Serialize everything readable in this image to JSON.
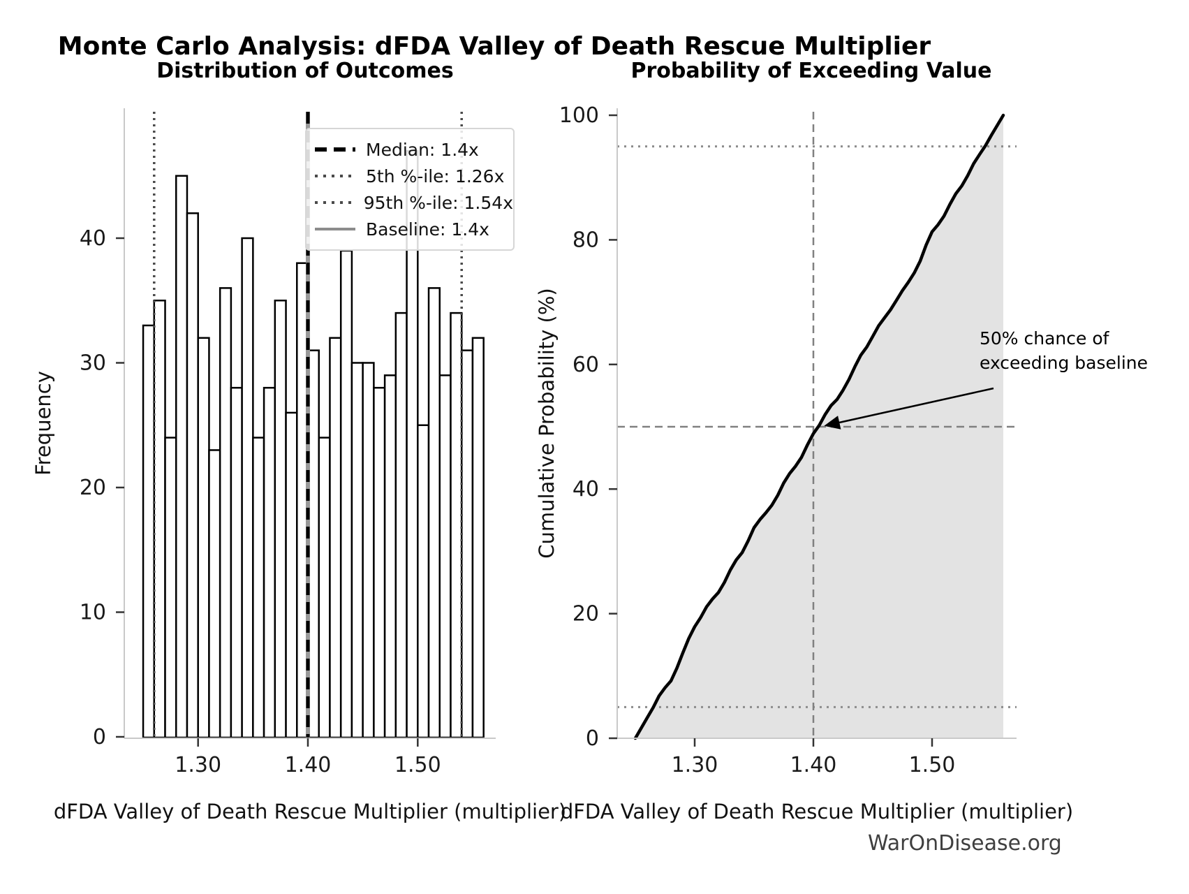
{
  "figure": {
    "title": "Monte Carlo Analysis: dFDA Valley of Death Rescue Multiplier",
    "footer": "WarOnDisease.org",
    "background": "#ffffff"
  },
  "colors": {
    "bar_fill": "#ffffff",
    "bar_edge": "#000000",
    "median_line": "#000000",
    "percentile_line": "#4a4a4a",
    "baseline_line": "#999999",
    "spine": "#c9c9c9",
    "tick_mark": "#333333",
    "tick_label": "#1a1a1a",
    "cdf_curve": "#000000",
    "cdf_fill": "rgba(128,128,128,0.22)",
    "crosshair": "#808080",
    "dotted_level": "#8c8c8c",
    "legend_border": "#d6d6d6",
    "footer_text": "#3f3f3f"
  },
  "chart_data": [
    {
      "id": "histogram",
      "type": "bar",
      "title": "Distribution of Outcomes",
      "xlabel": "dFDA Valley of Death Rescue Multiplier (multiplier)",
      "ylabel": "Frequency",
      "bin_start": 1.25,
      "bin_width": 0.01,
      "frequencies": [
        33,
        35,
        24,
        45,
        42,
        32,
        23,
        36,
        28,
        40,
        24,
        28,
        35,
        26,
        38,
        31,
        24,
        32,
        39,
        30,
        30,
        28,
        29,
        34,
        47,
        25,
        36,
        29,
        34,
        31,
        32
      ],
      "total_samples": 1000,
      "x_ticks": [
        {
          "v": 1.3,
          "label": "1.30"
        },
        {
          "v": 1.4,
          "label": "1.40"
        },
        {
          "v": 1.5,
          "label": "1.50"
        }
      ],
      "y_ticks": [
        {
          "v": 0,
          "label": "0"
        },
        {
          "v": 10,
          "label": "10"
        },
        {
          "v": 20,
          "label": "20"
        },
        {
          "v": 30,
          "label": "30"
        },
        {
          "v": 40,
          "label": "40"
        }
      ],
      "xlim": [
        1.2345,
        1.5755
      ],
      "ylim": [
        0,
        50.4
      ],
      "grid": false,
      "reference_lines": [
        {
          "label": "Median: 1.4x",
          "x": 1.4,
          "style": "dashed-black"
        },
        {
          "label": "5th %-ile: 1.26x",
          "x": 1.26,
          "style": "dotted-gray"
        },
        {
          "label": "95th %-ile: 1.54x",
          "x": 1.54,
          "style": "dotted-gray"
        },
        {
          "label": "Baseline: 1.4x",
          "x": 1.4,
          "style": "solid-gray"
        }
      ],
      "legend_position": "upper right"
    },
    {
      "id": "cdf",
      "type": "area",
      "title": "Probability of Exceeding Value",
      "xlabel": "dFDA Valley of Death Rescue Multiplier (multiplier)",
      "ylabel": "Cumulative Probability (%)",
      "x": [
        1.25,
        1.26,
        1.27,
        1.28,
        1.29,
        1.3,
        1.31,
        1.32,
        1.33,
        1.34,
        1.35,
        1.36,
        1.37,
        1.38,
        1.39,
        1.4,
        1.41,
        1.42,
        1.43,
        1.44,
        1.45,
        1.46,
        1.47,
        1.48,
        1.49,
        1.5,
        1.51,
        1.52,
        1.53,
        1.54,
        1.55,
        1.56
      ],
      "y": [
        0,
        3.3,
        6.8,
        9.2,
        13.7,
        17.9,
        21.1,
        23.4,
        27.0,
        29.8,
        33.8,
        36.2,
        39.0,
        42.5,
        45.1,
        48.9,
        52.0,
        54.4,
        57.6,
        61.5,
        64.5,
        67.5,
        70.3,
        73.2,
        76.6,
        81.3,
        83.8,
        87.4,
        90.3,
        93.7,
        96.8,
        100
      ],
      "x_ticks": [
        {
          "v": 1.3,
          "label": "1.30"
        },
        {
          "v": 1.4,
          "label": "1.40"
        },
        {
          "v": 1.5,
          "label": "1.50"
        }
      ],
      "y_ticks": [
        {
          "v": 0,
          "label": "0"
        },
        {
          "v": 20,
          "label": "20"
        },
        {
          "v": 40,
          "label": "40"
        },
        {
          "v": 60,
          "label": "60"
        },
        {
          "v": 80,
          "label": "80"
        },
        {
          "v": 100,
          "label": "100"
        }
      ],
      "xlim": [
        1.2345,
        1.5755
      ],
      "ylim": [
        0,
        100
      ],
      "grid": false,
      "crosshair": {
        "x": 1.4,
        "y": 50
      },
      "dotted_levels": [
        5,
        95
      ],
      "annotation": {
        "line1": "50% chance of",
        "line2": "exceeding baseline"
      },
      "legend_position": "none"
    }
  ]
}
